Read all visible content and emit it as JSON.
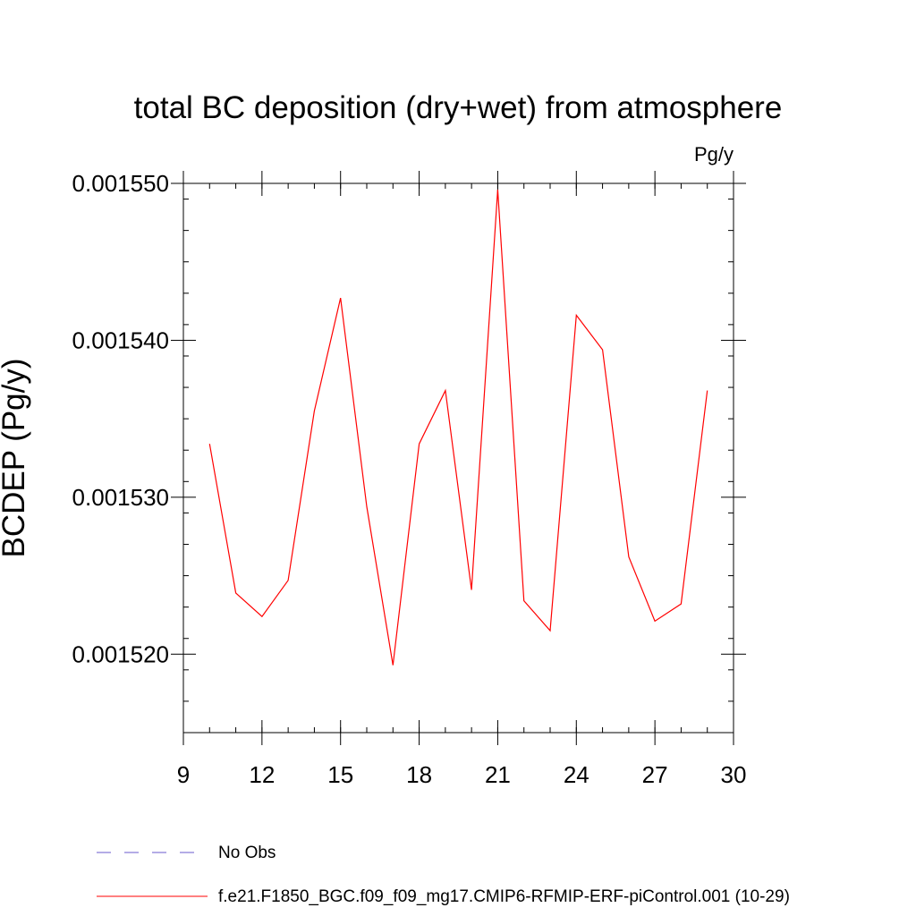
{
  "chart_data": {
    "type": "line",
    "title": "total BC deposition (dry+wet) from atmosphere",
    "units_label": "Pg/y",
    "ylabel": "BCDEP  (Pg/y)",
    "xlabel": "",
    "xlim": [
      9,
      30
    ],
    "ylim": [
      0.001515,
      0.00155
    ],
    "x_ticks": [
      9,
      12,
      15,
      18,
      21,
      24,
      27,
      30
    ],
    "x_tick_labels": [
      "9",
      "12",
      "15",
      "18",
      "21",
      "24",
      "27",
      "30"
    ],
    "x_minor_step": 1,
    "y_ticks": [
      0.00152,
      0.00153,
      0.00154,
      0.00155
    ],
    "y_tick_labels": [
      "0.001520",
      "0.001530",
      "0.001540",
      "0.001550"
    ],
    "y_minor_step": 2e-06,
    "grid": false,
    "legend_position": "bottom",
    "series": [
      {
        "name": "f.e21.F1850_BGC.f09_f09_mg17.CMIP6-RFMIP-ERF-piControl.001 (10-29)",
        "color": "#ff0000",
        "dash": "solid",
        "x": [
          10,
          11,
          12,
          13,
          14,
          15,
          16,
          17,
          18,
          19,
          20,
          21,
          22,
          23,
          24,
          25,
          26,
          27,
          28,
          29
        ],
        "y": [
          0.0015334,
          0.0015239,
          0.0015224,
          0.0015247,
          0.0015355,
          0.0015427,
          0.0015294,
          0.0015193,
          0.0015334,
          0.0015368,
          0.0015241,
          0.0015496,
          0.0015234,
          0.0015215,
          0.0015416,
          0.0015394,
          0.0015262,
          0.0015221,
          0.0015232,
          0.0015368
        ]
      }
    ],
    "legend": [
      {
        "label": "No Obs",
        "color": "#6a5acd",
        "dash": "dashed",
        "in_plot": false
      },
      {
        "label": "f.e21.F1850_BGC.f09_f09_mg17.CMIP6-RFMIP-ERF-piControl.001 (10-29)",
        "color": "#ff0000",
        "dash": "solid",
        "in_plot": true
      }
    ]
  }
}
